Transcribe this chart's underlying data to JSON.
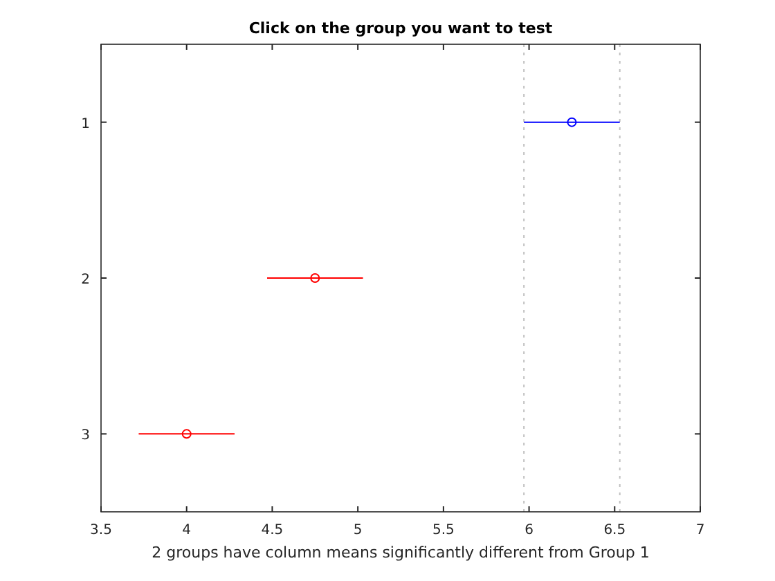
{
  "chart_data": {
    "type": "scatter",
    "orientation": "horizontal",
    "title": "Click on the group you want to test",
    "xlabel": "2 groups have column means significantly different from Group 1",
    "categories": [
      "1",
      "2",
      "3"
    ],
    "values": [
      6.25,
      4.75,
      4.0
    ],
    "errors": [
      [
        5.97,
        6.53
      ],
      [
        4.47,
        5.03
      ],
      [
        3.72,
        4.28
      ]
    ],
    "colors": [
      "#0000ff",
      "#ff0000",
      "#ff0000"
    ],
    "marker": "circle",
    "xlim": [
      3.5,
      7
    ],
    "xticks": [
      3.5,
      4,
      4.5,
      5,
      5.5,
      6,
      6.5,
      7
    ],
    "ref_lines": [
      {
        "axis": "x",
        "value": 5.97,
        "color": "#c0c0c0",
        "line_style": "dotted"
      },
      {
        "axis": "x",
        "value": 6.53,
        "color": "#c0c0c0",
        "line_style": "dotted"
      }
    ],
    "grid": false
  }
}
